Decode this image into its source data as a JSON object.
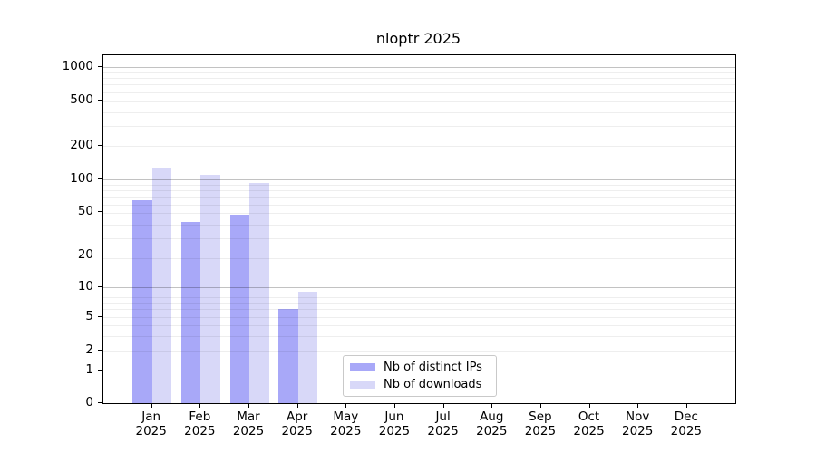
{
  "chart_data": {
    "type": "bar",
    "title": "nloptr 2025",
    "categories": [
      "Jan",
      "Feb",
      "Mar",
      "Apr",
      "May",
      "Jun",
      "Jul",
      "Aug",
      "Sep",
      "Oct",
      "Nov",
      "Dec"
    ],
    "year_label": "2025",
    "series": [
      {
        "name": "Nb of distinct IPs",
        "color": "#a8a8f8",
        "values": [
          64,
          41,
          48,
          6,
          0,
          0,
          0,
          0,
          0,
          0,
          0,
          0
        ]
      },
      {
        "name": "Nb of downloads",
        "color": "#d8d8f8",
        "values": [
          127,
          110,
          93,
          9,
          0,
          0,
          0,
          0,
          0,
          0,
          0,
          0
        ]
      }
    ],
    "y_axis": {
      "scale": "log1p",
      "ylim": [
        0,
        1000
      ],
      "ticks": [
        1000,
        500,
        200,
        100,
        50,
        20,
        10,
        5,
        2,
        1,
        0
      ]
    },
    "grid": {
      "on": true,
      "major_values": [
        1,
        10,
        100,
        1000
      ],
      "minor_multipliers": [
        2,
        3,
        4,
        5,
        6,
        7,
        8,
        9
      ],
      "minor_decades": [
        0,
        1,
        2
      ]
    },
    "legend": {
      "position": "lower center"
    }
  }
}
